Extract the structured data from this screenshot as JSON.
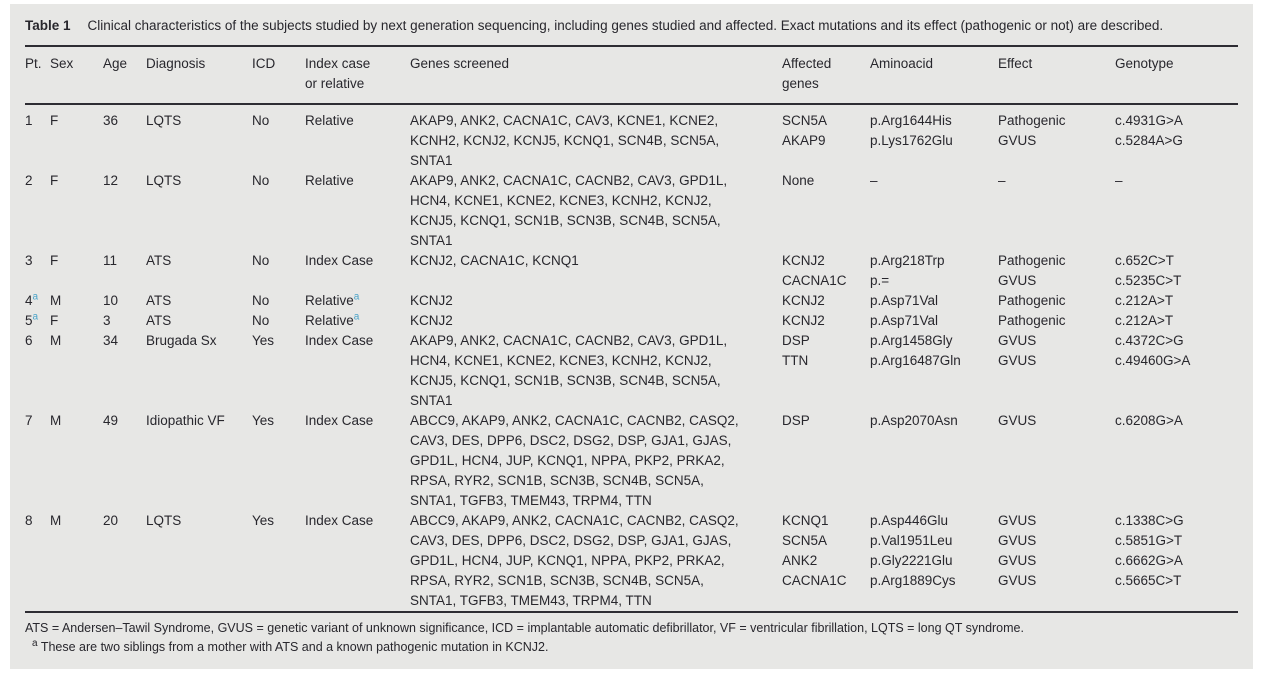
{
  "table": {
    "label": "Table 1",
    "caption": "Clinical characteristics of the subjects studied by next generation sequencing, including genes studied and affected. Exact mutations and its effect (pathogenic or not) are described.",
    "columns": [
      "Pt.",
      "Sex",
      "Age",
      "Diagnosis",
      "ICD",
      "Index case\nor relative",
      "Genes screened",
      "Affected\ngenes",
      "Aminoacid",
      "Effect",
      "Genotype"
    ],
    "rows": [
      {
        "pt": "1",
        "pt_sup": "",
        "sex": "F",
        "age": "36",
        "diagnosis": "LQTS",
        "icd": "No",
        "index_case": "Relative",
        "index_sup": "",
        "genes_screened": "AKAP9, ANK2, CACNA1C, CAV3, KCNE1, KCNE2,\nKCNH2, KCNJ2, KCNJ5, KCNQ1, SCN4B, SCN5A,\nSNTA1",
        "affected_genes": [
          "SCN5A",
          "AKAP9"
        ],
        "aminoacid": [
          "p.Arg1644His",
          "p.Lys1762Glu"
        ],
        "effect": [
          "Pathogenic",
          "GVUS"
        ],
        "genotype": [
          "c.4931G>A",
          "c.5284A>G"
        ]
      },
      {
        "pt": "2",
        "pt_sup": "",
        "sex": "F",
        "age": "12",
        "diagnosis": "LQTS",
        "icd": "No",
        "index_case": "Relative",
        "index_sup": "",
        "genes_screened": "AKAP9, ANK2, CACNA1C, CACNB2, CAV3, GPD1L,\nHCN4, KCNE1, KCNE2, KCNE3, KCNH2, KCNJ2,\nKCNJ5, KCNQ1, SCN1B, SCN3B, SCN4B, SCN5A,\nSNTA1",
        "affected_genes": [
          "None"
        ],
        "aminoacid": [
          "–"
        ],
        "effect": [
          "–"
        ],
        "genotype": [
          "–"
        ]
      },
      {
        "pt": "3",
        "pt_sup": "",
        "sex": "F",
        "age": "11",
        "diagnosis": "ATS",
        "icd": "No",
        "index_case": "Index Case",
        "index_sup": "",
        "genes_screened": "KCNJ2, CACNA1C, KCNQ1",
        "affected_genes": [
          "KCNJ2",
          "CACNA1C"
        ],
        "aminoacid": [
          "p.Arg218Trp",
          "p.="
        ],
        "effect": [
          "Pathogenic",
          "GVUS"
        ],
        "genotype": [
          "c.652C>T",
          "c.5235C>T"
        ]
      },
      {
        "pt": "4",
        "pt_sup": "a",
        "sex": "M",
        "age": "10",
        "diagnosis": "ATS",
        "icd": "No",
        "index_case": "Relative",
        "index_sup": "a",
        "genes_screened": "KCNJ2",
        "affected_genes": [
          "KCNJ2"
        ],
        "aminoacid": [
          "p.Asp71Val"
        ],
        "effect": [
          "Pathogenic"
        ],
        "genotype": [
          "c.212A>T"
        ]
      },
      {
        "pt": "5",
        "pt_sup": "a",
        "sex": "F",
        "age": "3",
        "diagnosis": "ATS",
        "icd": "No",
        "index_case": "Relative",
        "index_sup": "a",
        "genes_screened": "KCNJ2",
        "affected_genes": [
          "KCNJ2"
        ],
        "aminoacid": [
          "p.Asp71Val"
        ],
        "effect": [
          "Pathogenic"
        ],
        "genotype": [
          "c.212A>T"
        ]
      },
      {
        "pt": "6",
        "pt_sup": "",
        "sex": "M",
        "age": "34",
        "diagnosis": "Brugada Sx",
        "icd": "Yes",
        "index_case": "Index Case",
        "index_sup": "",
        "genes_screened": "AKAP9, ANK2, CACNA1C, CACNB2, CAV3, GPD1L,\nHCN4, KCNE1, KCNE2, KCNE3, KCNH2, KCNJ2,\nKCNJ5, KCNQ1, SCN1B, SCN3B, SCN4B, SCN5A,\nSNTA1",
        "affected_genes": [
          "DSP",
          "TTN"
        ],
        "aminoacid": [
          "p.Arg1458Gly",
          "p.Arg16487Gln"
        ],
        "effect": [
          "GVUS",
          "GVUS"
        ],
        "genotype": [
          "c.4372C>G",
          "c.49460G>A"
        ]
      },
      {
        "pt": "7",
        "pt_sup": "",
        "sex": "M",
        "age": "49",
        "diagnosis": "Idiopathic VF",
        "icd": "Yes",
        "index_case": "Index Case",
        "index_sup": "",
        "genes_screened": "ABCC9, AKAP9, ANK2, CACNA1C, CACNB2, CASQ2,\nCAV3, DES, DPP6, DSC2, DSG2, DSP, GJA1, GJAS,\nGPD1L, HCN4, JUP, KCNQ1, NPPA, PKP2, PRKA2,\nRPSA, RYR2, SCN1B, SCN3B, SCN4B, SCN5A,\nSNTA1, TGFB3, TMEM43, TRPM4, TTN",
        "affected_genes": [
          "DSP"
        ],
        "aminoacid": [
          "p.Asp2070Asn"
        ],
        "effect": [
          "GVUS"
        ],
        "genotype": [
          "c.6208G>A"
        ]
      },
      {
        "pt": "8",
        "pt_sup": "",
        "sex": "M",
        "age": "20",
        "diagnosis": "LQTS",
        "icd": "Yes",
        "index_case": "Index Case",
        "index_sup": "",
        "genes_screened": "ABCC9, AKAP9, ANK2, CACNA1C, CACNB2, CASQ2,\nCAV3, DES, DPP6, DSC2, DSG2, DSP, GJA1, GJAS,\nGPD1L, HCN4, JUP, KCNQ1, NPPA, PKP2, PRKA2,\nRPSA, RYR2, SCN1B, SCN3B, SCN4B, SCN5A,\nSNTA1, TGFB3, TMEM43, TRPM4, TTN",
        "affected_genes": [
          "KCNQ1",
          "SCN5A",
          "ANK2",
          "CACNA1C"
        ],
        "aminoacid": [
          "p.Asp446Glu",
          "p.Val1951Leu",
          "p.Gly2221Glu",
          "p.Arg1889Cys"
        ],
        "effect": [
          "GVUS",
          "GVUS",
          "GVUS",
          "GVUS"
        ],
        "genotype": [
          "c.1338C>G",
          "c.5851G>T",
          "c.6662G>A",
          "c.5665C>T"
        ]
      }
    ],
    "footnote_abbreviations": "ATS = Andersen–Tawil Syndrome, GVUS = genetic variant of unknown significance, ICD = implantable automatic defibrillator, VF = ventricular fibrillation, LQTS = long QT syndrome.",
    "footnote_a_marker": "a",
    "footnote_a": "These are two siblings from a mother with ATS and a known pathogenic mutation in KCNJ2.",
    "accent_color": "#4ba4c9"
  }
}
